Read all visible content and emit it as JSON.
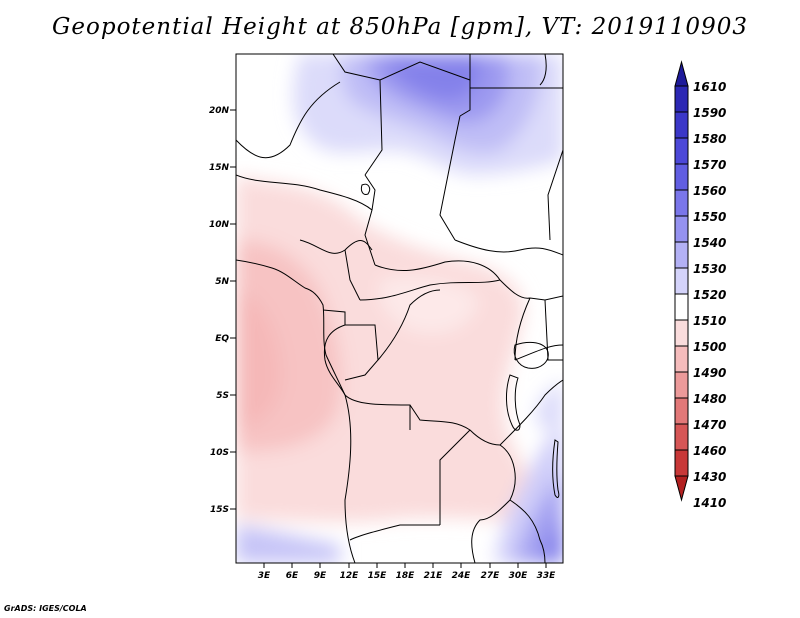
{
  "title": "Geopotential Height at 850hPa [gpm], VT: 2019110903",
  "credit": "GrADS: IGES/COLA",
  "map": {
    "lat_labels": [
      "20N",
      "15N",
      "10N",
      "5N",
      "EQ",
      "5S",
      "10S",
      "15S"
    ],
    "lon_labels": [
      "3E",
      "6E",
      "9E",
      "12E",
      "15E",
      "18E",
      "21E",
      "24E",
      "27E",
      "30E",
      "33E"
    ]
  },
  "colorbar": {
    "levels": [
      "1610",
      "1590",
      "1580",
      "1570",
      "1560",
      "1550",
      "1540",
      "1530",
      "1520",
      "1510",
      "1500",
      "1490",
      "1480",
      "1470",
      "1460",
      "1430",
      "1410"
    ],
    "colors": [
      "#1e1a9a",
      "#2c28b4",
      "#3b37c8",
      "#4c48d8",
      "#615ee2",
      "#7a76ea",
      "#9592f0",
      "#b3b1f5",
      "#d4d3fa",
      "#ffffff",
      "#fadcdc",
      "#f5bcbc",
      "#ec9a9a",
      "#e27878",
      "#d65656",
      "#c83838",
      "#b22020"
    ]
  }
}
